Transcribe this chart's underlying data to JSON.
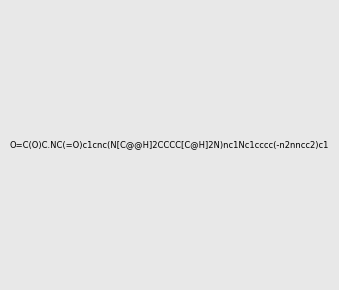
{
  "smiles": "O=C(O)C.NC(=O)c1cnc(N[C@@H]2CCCC[C@H]2N)nc1Nc1cccc(-n2nncc2)c1",
  "image_size": 300,
  "background_color": "#e8e8e8"
}
